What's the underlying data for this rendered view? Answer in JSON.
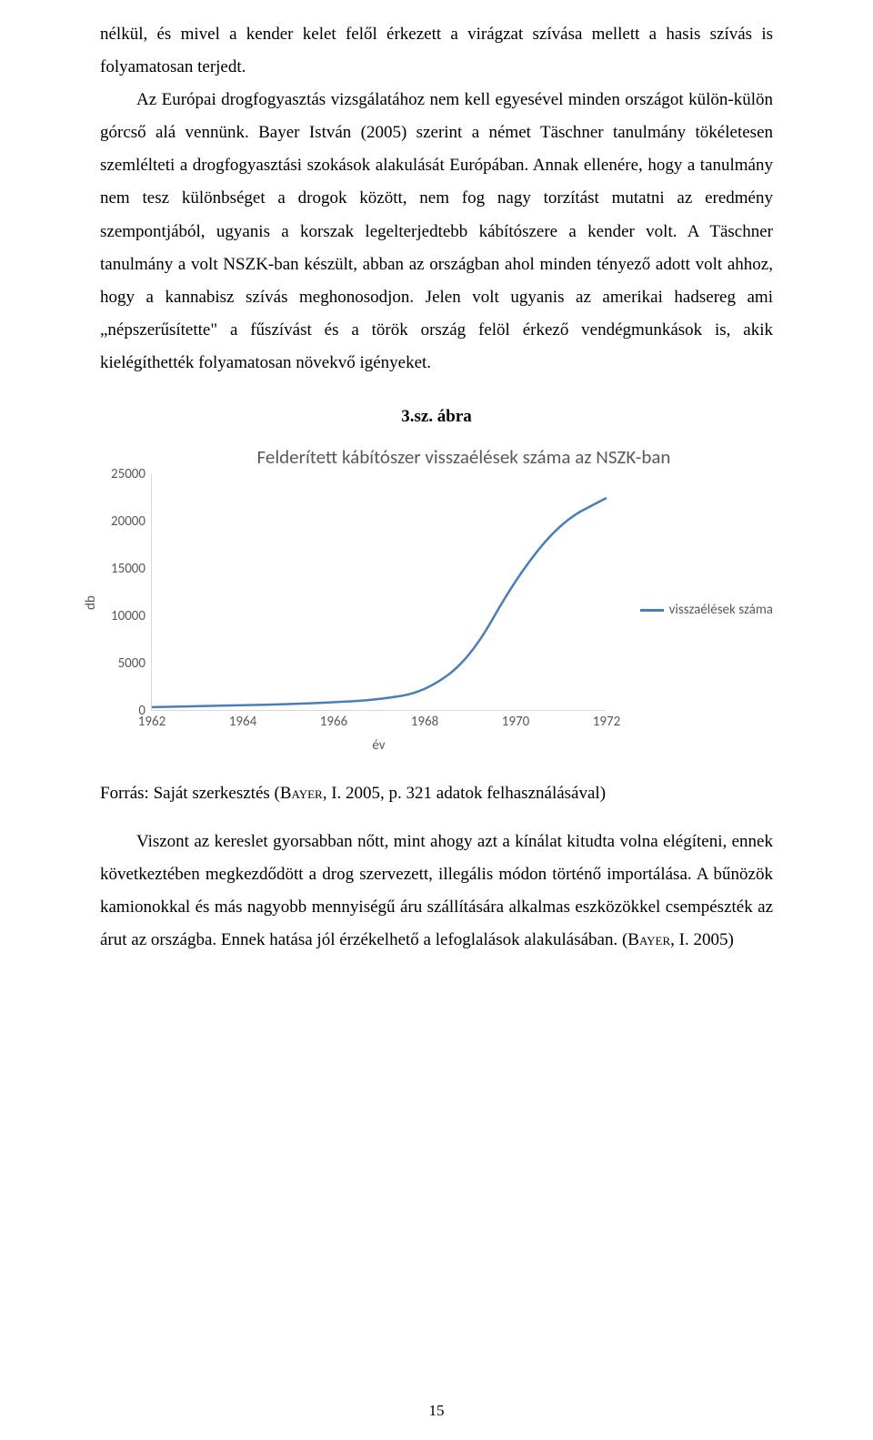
{
  "para1": "nélkül, és mivel a kender kelet felől érkezett a virágzat szívása mellett a hasis szívás is folyamatosan terjedt.",
  "para2": "Az Európai drogfogyasztás vizsgálatához nem kell egyesével minden országot külön-külön górcső alá vennünk. Bayer István (2005) szerint a német Täschner tanulmány tökéletesen szemlélteti a drogfogyasztási szokások alakulását Európában. Annak ellenére, hogy a tanulmány nem tesz különbséget a drogok között, nem fog nagy torzítást mutatni az eredmény szempontjából, ugyanis a korszak legelterjedtebb kábítószere a kender volt. A Täschner tanulmány a volt NSZK-ban készült, abban az országban ahol minden tényező adott volt ahhoz, hogy a kannabisz szívás meghonosodjon. Jelen volt ugyanis az amerikai hadsereg ami „népszerűsítette\" a fűszívást és a török ország felöl érkező vendégmunkások is, akik kielégíthették folyamatosan növekvő igényeket.",
  "figure_caption": "3.sz. ábra",
  "chart": {
    "title": "Felderített kábítószer visszaélések száma az NSZK-ban",
    "ylabel": "db",
    "xlabel": "év",
    "yticks": [
      0,
      5000,
      10000,
      15000,
      20000,
      25000
    ],
    "xticks": [
      1962,
      1964,
      1966,
      1968,
      1970,
      1972
    ],
    "xlim": [
      1962,
      1972
    ],
    "ylim": [
      0,
      25000
    ],
    "line_color": "#4a7ebb",
    "line_width": 2.5,
    "axis_color": "#d9d9d9",
    "text_color": "#595959",
    "legend_label": "visszaélések száma",
    "data": [
      {
        "x": 1962,
        "y": 400
      },
      {
        "x": 1963,
        "y": 500
      },
      {
        "x": 1964,
        "y": 600
      },
      {
        "x": 1965,
        "y": 700
      },
      {
        "x": 1966,
        "y": 900
      },
      {
        "x": 1967,
        "y": 1200
      },
      {
        "x": 1968,
        "y": 2000
      },
      {
        "x": 1969,
        "y": 5500
      },
      {
        "x": 1970,
        "y": 14000
      },
      {
        "x": 1971,
        "y": 20000
      },
      {
        "x": 1972,
        "y": 22500
      }
    ]
  },
  "source_prefix": "Forrás: Saját szerkesztés (",
  "source_sc1": "Bayer",
  "source_mid": ", I. 2005, p. 321 adatok felhasználásával)",
  "para3": "Viszont az kereslet gyorsabban nőtt, mint ahogy azt a kínálat kitudta volna elégíteni, ennek következtében megkezdődött a drog szervezett, illegális módon történő importálása.  A bűnözök kamionokkal és más nagyobb mennyiségű áru szállítására alkalmas eszközökkel csempészték az árut az országba. Ennek hatása jól érzékelhető a lefoglalások alakulásában. (",
  "source_sc2": "Bayer",
  "para3_tail": ", I. 2005)",
  "page_number": "15"
}
